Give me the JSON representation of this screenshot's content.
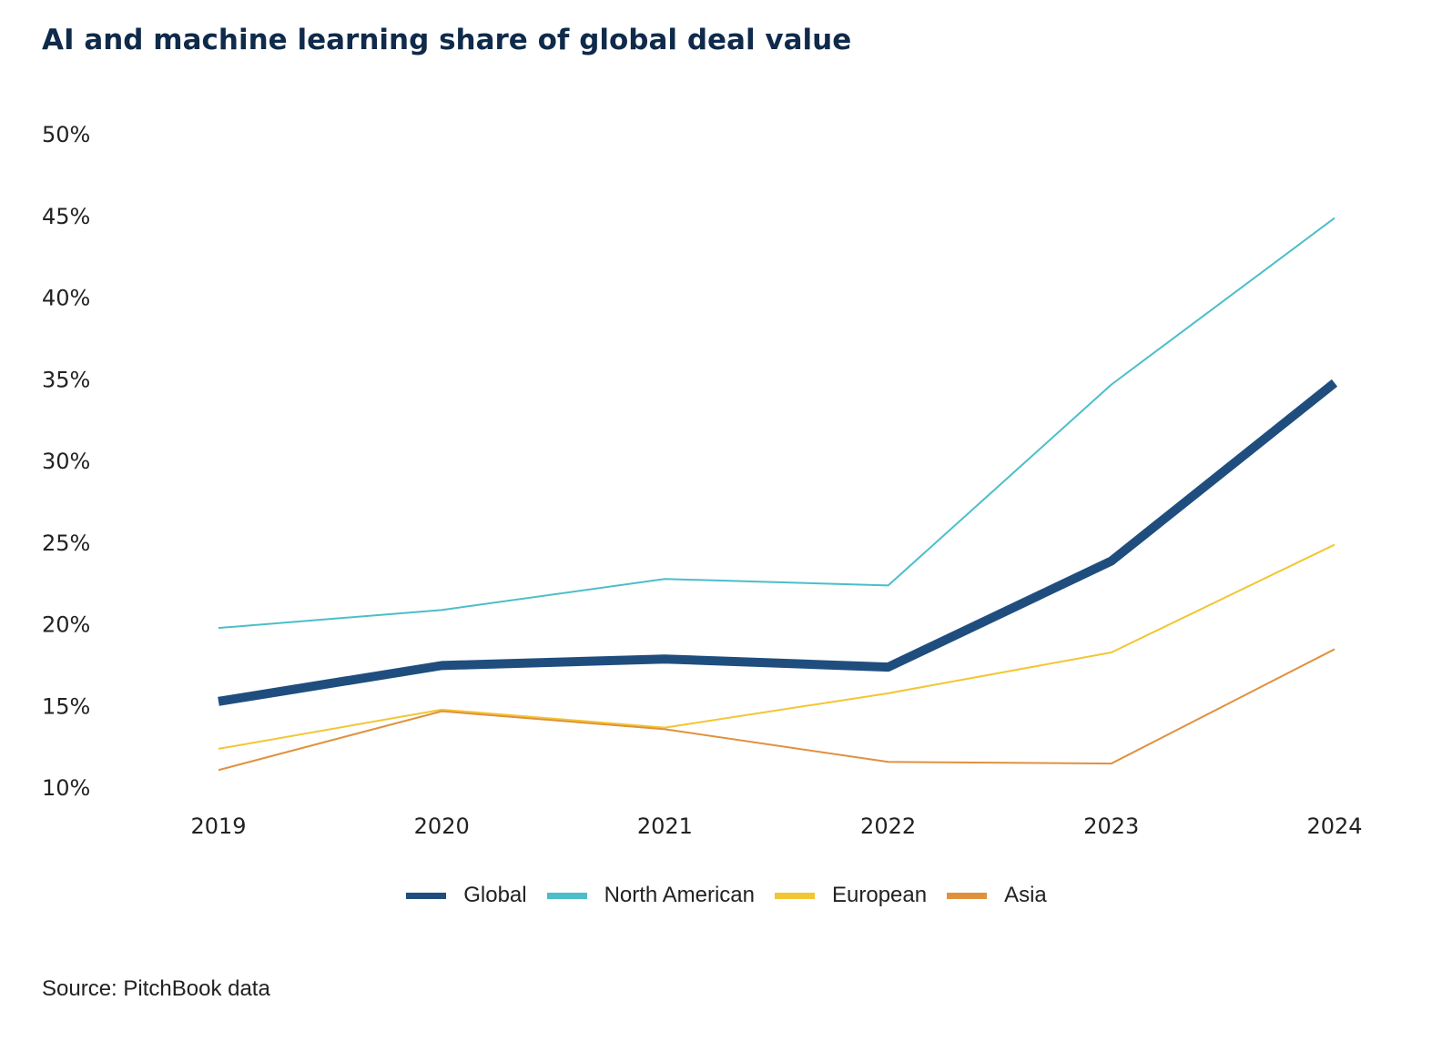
{
  "title": "AI and machine learning share of global deal value",
  "source": "Source: PitchBook data",
  "chart_data": {
    "type": "line",
    "title": "AI and machine learning share of global deal value",
    "categories": [
      "2019",
      "2020",
      "2021",
      "2022",
      "2023",
      "2024"
    ],
    "ylim": [
      10,
      50
    ],
    "yticks": [
      10,
      15,
      20,
      25,
      30,
      35,
      40,
      45,
      50
    ],
    "ytick_labels": [
      "10%",
      "15%",
      "20%",
      "25%",
      "30%",
      "35%",
      "40%",
      "45%",
      "50%"
    ],
    "ylabel": "",
    "xlabel": "",
    "grid": false,
    "legend_position": "bottom",
    "series": [
      {
        "name": "Global",
        "color": "#1f4e7e",
        "emphasis": true,
        "values": [
          15.3,
          17.5,
          17.9,
          17.4,
          23.9,
          34.8
        ]
      },
      {
        "name": "North American",
        "color": "#4bbec9",
        "emphasis": false,
        "values": [
          19.8,
          20.9,
          22.8,
          22.4,
          34.7,
          44.9
        ]
      },
      {
        "name": "European",
        "color": "#f2c633",
        "emphasis": false,
        "values": [
          12.4,
          14.8,
          13.7,
          15.8,
          18.3,
          24.9
        ]
      },
      {
        "name": "Asia",
        "color": "#e0913e",
        "emphasis": false,
        "values": [
          11.1,
          14.7,
          13.6,
          11.6,
          11.5,
          18.5
        ]
      }
    ]
  }
}
